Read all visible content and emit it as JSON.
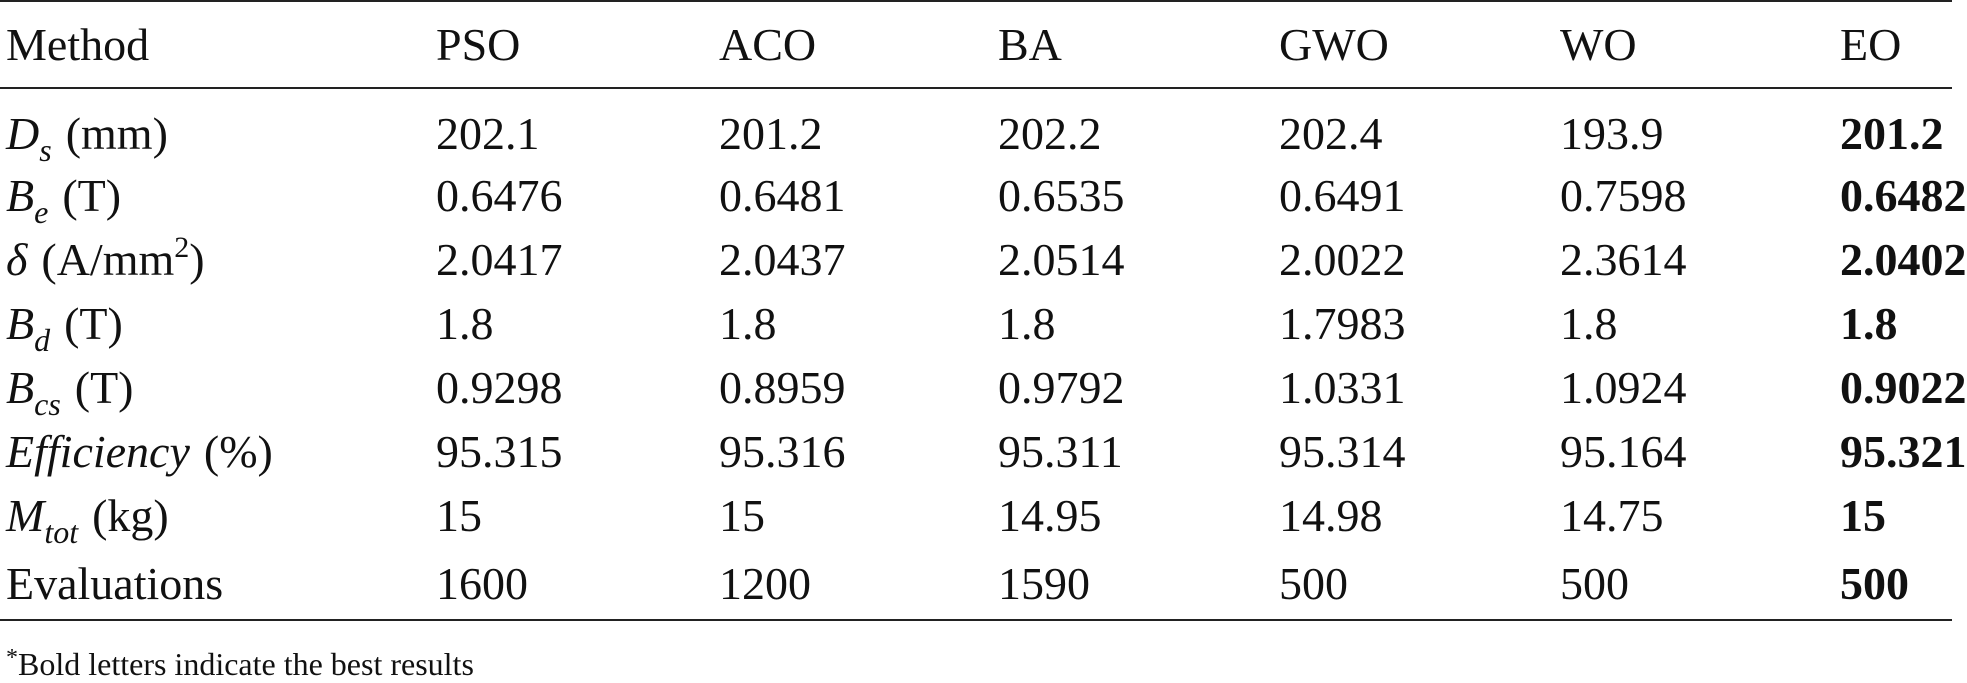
{
  "table": {
    "header": [
      "Method",
      "PSO",
      "ACO",
      "BA",
      "GWO",
      "WO",
      "EO"
    ],
    "rows": [
      {
        "label": {
          "symbol": "D",
          "subscript": "s",
          "unit": "(mm)"
        },
        "values": [
          "202.1",
          "201.2",
          "202.2",
          "202.4",
          "193.9",
          "201.2"
        ]
      },
      {
        "label": {
          "symbol": "B",
          "subscript": "e",
          "unit": "(T)"
        },
        "values": [
          "0.6476",
          "0.6481",
          "0.6535",
          "0.6491",
          "0.7598",
          "0.6482"
        ]
      },
      {
        "label": {
          "symbol": "δ",
          "unit": "(A/mm",
          "unit_superscript": "2",
          "unit_close": ")"
        },
        "values": [
          "2.0417",
          "2.0437",
          "2.0514",
          "2.0022",
          "2.3614",
          "2.0402"
        ]
      },
      {
        "label": {
          "symbol": "B",
          "subscript": "d",
          "unit": "(T)"
        },
        "values": [
          "1.8",
          "1.8",
          "1.8",
          "1.7983",
          "1.8",
          "1.8"
        ]
      },
      {
        "label": {
          "symbol": "B",
          "subscript": "cs",
          "unit": "(T)"
        },
        "values": [
          "0.9298",
          "0.8959",
          "0.9792",
          "1.0331",
          "1.0924",
          "0.9022"
        ]
      },
      {
        "label": {
          "symbol": "Efficiency",
          "unit": "(%)"
        },
        "values": [
          "95.315",
          "95.316",
          "95.311",
          "95.314",
          "95.164",
          "95.321"
        ]
      },
      {
        "label": {
          "symbol": "M",
          "subscript": "tot",
          "unit": "(kg)"
        },
        "values": [
          "15",
          "15",
          "14.95",
          "14.98",
          "14.75",
          "15"
        ]
      },
      {
        "label": {
          "text": "Evaluations"
        },
        "values": [
          "1600",
          "1200",
          "1590",
          "500",
          "500",
          "500"
        ]
      }
    ]
  },
  "footnote": {
    "marker": "*",
    "text": "Bold letters indicate the best results"
  }
}
